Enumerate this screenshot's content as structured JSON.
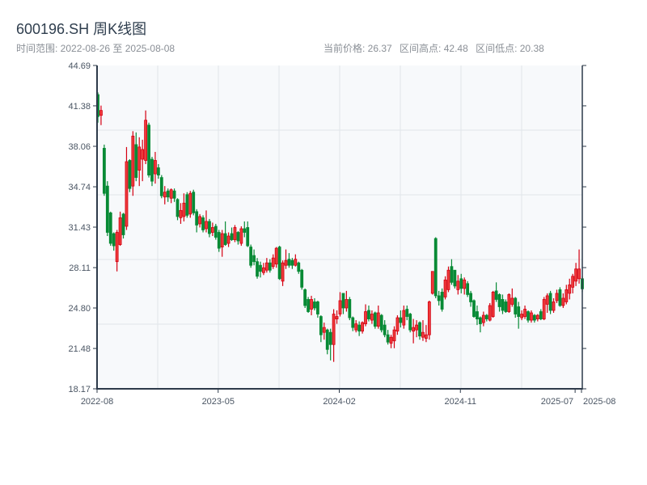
{
  "header": {
    "title": "600196.SH 周K线图",
    "range_label": "时间范围: 2022-08-26 至 2025-08-08",
    "current_price": "当前价格: 26.37",
    "high": "区间高点: 42.48",
    "low": "区间低点: 20.38"
  },
  "colors": {
    "up": "#d40012",
    "up_fill": "#ee3b3b",
    "down": "#078a35",
    "plot_bg": "#f7f9fb",
    "grid": "#e1e5ea",
    "axis": "#2d3a4a"
  },
  "chart_data": {
    "type": "candlestick",
    "title": "600196.SH 周K线图",
    "ylim": [
      18.17,
      44.69
    ],
    "yticks": [
      "18.17",
      "21.48",
      "24.80",
      "28.11",
      "31.43",
      "34.74",
      "38.06",
      "41.38",
      "44.69"
    ],
    "xticks": [
      {
        "label": "2022-08",
        "index": 0
      },
      {
        "label": "2023-05",
        "index": 38
      },
      {
        "label": "2024-02",
        "index": 76
      },
      {
        "label": "2024-11",
        "index": 114
      },
      {
        "label": "2025-07",
        "index": 150
      },
      {
        "label": "2025-08",
        "index": 152
      }
    ],
    "grid": true,
    "ohlc_order": [
      "open",
      "high",
      "low",
      "close"
    ],
    "candles": [
      [
        42.3,
        42.48,
        40.0,
        40.5
      ],
      [
        40.6,
        41.4,
        39.8,
        41.0
      ],
      [
        37.9,
        38.2,
        34.0,
        34.2
      ],
      [
        34.8,
        35.2,
        30.7,
        31.0
      ],
      [
        32.6,
        32.7,
        29.9,
        30.1
      ],
      [
        30.9,
        31.0,
        29.5,
        29.9
      ],
      [
        28.6,
        31.2,
        27.8,
        31.0
      ],
      [
        30.0,
        32.7,
        29.9,
        32.2
      ],
      [
        32.5,
        32.6,
        30.5,
        30.8
      ],
      [
        31.5,
        38.0,
        31.2,
        36.8
      ],
      [
        36.9,
        37.0,
        34.3,
        34.6
      ],
      [
        34.8,
        39.3,
        34.0,
        38.9
      ],
      [
        38.2,
        39.2,
        35.2,
        35.5
      ],
      [
        36.1,
        38.8,
        34.8,
        38.0
      ],
      [
        37.0,
        38.6,
        35.2,
        37.8
      ],
      [
        36.9,
        41.0,
        36.6,
        40.2
      ],
      [
        39.8,
        40.0,
        35.5,
        35.7
      ],
      [
        37.0,
        37.2,
        34.8,
        35.2
      ],
      [
        35.8,
        37.6,
        35.0,
        36.9
      ],
      [
        36.3,
        36.6,
        35.4,
        35.7
      ],
      [
        35.5,
        35.7,
        33.8,
        34.0
      ],
      [
        33.9,
        34.8,
        33.3,
        34.3
      ],
      [
        34.4,
        34.6,
        33.5,
        33.9
      ],
      [
        33.8,
        34.6,
        33.4,
        34.5
      ],
      [
        34.4,
        34.6,
        33.5,
        33.8
      ],
      [
        33.7,
        33.8,
        32.0,
        32.3
      ],
      [
        32.2,
        33.4,
        31.7,
        32.8
      ],
      [
        32.3,
        34.2,
        31.9,
        33.4
      ],
      [
        34.1,
        34.3,
        32.2,
        32.4
      ],
      [
        32.5,
        34.4,
        32.2,
        34.2
      ],
      [
        34.3,
        34.5,
        32.4,
        32.6
      ],
      [
        32.7,
        32.9,
        31.0,
        31.6
      ],
      [
        31.7,
        32.5,
        31.4,
        32.3
      ],
      [
        32.2,
        32.4,
        31.0,
        31.2
      ],
      [
        31.3,
        32.8,
        31.0,
        31.9
      ],
      [
        31.9,
        32.1,
        30.6,
        30.9
      ],
      [
        31.0,
        31.8,
        30.7,
        31.4
      ],
      [
        31.5,
        31.7,
        30.4,
        30.6
      ],
      [
        31.0,
        31.2,
        29.4,
        29.7
      ],
      [
        29.8,
        31.2,
        29.0,
        30.9
      ],
      [
        30.9,
        31.9,
        29.9,
        30.0
      ],
      [
        30.1,
        31.0,
        29.8,
        30.7
      ],
      [
        30.9,
        31.4,
        30.3,
        30.4
      ],
      [
        30.4,
        31.6,
        30.2,
        31.4
      ],
      [
        31.0,
        31.1,
        30.0,
        30.3
      ],
      [
        30.1,
        31.5,
        29.9,
        31.3
      ],
      [
        31.3,
        31.9,
        30.6,
        31.0
      ],
      [
        31.4,
        31.9,
        29.8,
        29.9
      ],
      [
        29.8,
        30.0,
        28.1,
        28.3
      ],
      [
        29.1,
        29.6,
        28.3,
        28.6
      ],
      [
        28.6,
        28.9,
        27.2,
        27.4
      ],
      [
        28.3,
        28.6,
        27.3,
        27.8
      ],
      [
        27.7,
        28.5,
        27.5,
        28.1
      ],
      [
        27.9,
        28.9,
        27.7,
        28.5
      ],
      [
        28.5,
        28.8,
        27.7,
        27.9
      ],
      [
        28.2,
        29.2,
        28.0,
        28.9
      ],
      [
        28.4,
        29.8,
        28.1,
        29.7
      ],
      [
        29.8,
        29.9,
        27.1,
        27.2
      ],
      [
        27.0,
        28.7,
        26.6,
        28.5
      ],
      [
        28.3,
        29.6,
        28.0,
        28.7
      ],
      [
        28.8,
        29.3,
        28.1,
        28.3
      ],
      [
        28.7,
        28.9,
        28.0,
        28.3
      ],
      [
        28.3,
        29.2,
        28.2,
        28.8
      ],
      [
        28.5,
        28.6,
        27.6,
        27.8
      ],
      [
        27.9,
        28.0,
        26.3,
        26.5
      ],
      [
        26.3,
        26.4,
        24.8,
        25.0
      ],
      [
        25.5,
        25.7,
        24.4,
        24.5
      ],
      [
        24.7,
        25.8,
        24.2,
        25.5
      ],
      [
        25.3,
        25.6,
        24.6,
        24.8
      ],
      [
        25.3,
        25.4,
        24.0,
        24.3
      ],
      [
        24.1,
        24.2,
        22.0,
        22.6
      ],
      [
        22.8,
        23.6,
        22.2,
        23.2
      ],
      [
        23.0,
        23.1,
        21.0,
        21.4
      ],
      [
        22.8,
        23.1,
        20.5,
        21.8
      ],
      [
        21.8,
        24.7,
        20.38,
        24.3
      ],
      [
        23.9,
        24.6,
        23.5,
        24.1
      ],
      [
        24.3,
        26.1,
        24.1,
        25.4
      ],
      [
        26.0,
        26.0,
        24.3,
        24.8
      ],
      [
        24.8,
        26.2,
        24.5,
        25.5
      ],
      [
        25.5,
        25.7,
        23.8,
        24.0
      ],
      [
        24.0,
        24.1,
        22.9,
        23.2
      ],
      [
        23.0,
        23.8,
        22.8,
        23.5
      ],
      [
        23.4,
        23.7,
        22.5,
        22.9
      ],
      [
        22.9,
        23.7,
        22.7,
        23.6
      ],
      [
        23.5,
        25.1,
        23.3,
        24.5
      ],
      [
        24.6,
        25.0,
        23.7,
        23.9
      ],
      [
        23.8,
        24.6,
        23.5,
        24.3
      ],
      [
        24.4,
        24.5,
        23.1,
        23.3
      ],
      [
        23.3,
        25.0,
        23.1,
        24.4
      ],
      [
        24.2,
        24.3,
        22.8,
        23.0
      ],
      [
        23.4,
        23.8,
        22.4,
        22.6
      ],
      [
        22.6,
        23.0,
        21.8,
        22.0
      ],
      [
        21.9,
        22.6,
        21.5,
        22.4
      ],
      [
        22.1,
        23.3,
        21.5,
        23.0
      ],
      [
        22.9,
        24.2,
        22.6,
        24.0
      ],
      [
        24.0,
        24.6,
        23.2,
        23.6
      ],
      [
        23.4,
        25.0,
        23.1,
        24.6
      ],
      [
        24.7,
        25.0,
        23.8,
        24.1
      ],
      [
        24.3,
        24.4,
        22.8,
        23.0
      ],
      [
        22.9,
        23.9,
        21.9,
        23.2
      ],
      [
        23.0,
        23.8,
        22.4,
        23.4
      ],
      [
        23.6,
        23.7,
        22.2,
        22.5
      ],
      [
        22.4,
        23.8,
        22.1,
        22.8
      ],
      [
        22.3,
        23.4,
        22.0,
        22.6
      ],
      [
        22.6,
        25.4,
        22.2,
        25.3
      ],
      [
        26.0,
        27.8,
        25.9,
        27.8
      ],
      [
        30.5,
        30.6,
        25.6,
        25.8
      ],
      [
        25.8,
        26.2,
        25.0,
        25.4
      ],
      [
        26.1,
        26.4,
        24.5,
        24.7
      ],
      [
        25.7,
        27.4,
        25.5,
        27.1
      ],
      [
        26.3,
        28.2,
        26.1,
        27.9
      ],
      [
        28.2,
        28.8,
        26.7,
        26.9
      ],
      [
        27.9,
        27.9,
        26.4,
        26.6
      ],
      [
        26.3,
        27.5,
        25.9,
        27.0
      ],
      [
        27.2,
        27.6,
        26.0,
        26.4
      ],
      [
        26.4,
        27.3,
        25.9,
        27.1
      ],
      [
        26.8,
        27.0,
        25.7,
        25.9
      ],
      [
        26.0,
        26.2,
        24.9,
        25.3
      ],
      [
        25.4,
        25.5,
        24.0,
        24.1
      ],
      [
        24.5,
        25.0,
        23.4,
        23.9
      ],
      [
        24.0,
        24.1,
        22.8,
        23.5
      ],
      [
        23.6,
        24.5,
        23.3,
        24.2
      ],
      [
        24.2,
        24.3,
        23.7,
        23.9
      ],
      [
        23.8,
        25.2,
        23.7,
        25.0
      ],
      [
        24.1,
        26.2,
        24.0,
        26.1
      ],
      [
        26.2,
        26.9,
        25.3,
        25.5
      ],
      [
        25.9,
        26.0,
        24.5,
        24.9
      ],
      [
        25.5,
        25.9,
        24.3,
        24.6
      ],
      [
        25.3,
        25.5,
        24.4,
        24.5
      ],
      [
        24.5,
        26.0,
        24.4,
        25.9
      ],
      [
        25.1,
        26.4,
        24.9,
        25.6
      ],
      [
        25.6,
        25.7,
        24.0,
        24.3
      ],
      [
        24.9,
        25.3,
        23.1,
        24.1
      ],
      [
        24.0,
        24.6,
        23.8,
        24.3
      ],
      [
        24.1,
        25.0,
        23.9,
        24.7
      ],
      [
        24.5,
        24.6,
        23.6,
        23.8
      ],
      [
        23.8,
        24.6,
        23.6,
        24.4
      ],
      [
        24.2,
        24.3,
        23.6,
        23.8
      ],
      [
        23.9,
        24.3,
        23.7,
        24.2
      ],
      [
        24.5,
        24.7,
        23.8,
        23.9
      ],
      [
        23.9,
        25.7,
        23.8,
        25.5
      ],
      [
        25.1,
        26.0,
        24.4,
        25.8
      ],
      [
        26.0,
        26.2,
        24.3,
        24.6
      ],
      [
        24.6,
        25.6,
        24.4,
        25.3
      ],
      [
        25.4,
        26.3,
        25.2,
        26.0
      ],
      [
        26.3,
        26.5,
        24.9,
        25.0
      ],
      [
        25.0,
        26.0,
        24.8,
        25.6
      ],
      [
        25.3,
        26.7,
        25.1,
        26.3
      ],
      [
        26.0,
        27.2,
        25.5,
        26.7
      ],
      [
        26.5,
        27.6,
        26.0,
        27.4
      ],
      [
        27.0,
        28.5,
        26.6,
        28.0
      ],
      [
        27.2,
        29.6,
        26.8,
        28.0
      ],
      [
        27.2,
        27.4,
        26.1,
        26.37
      ]
    ]
  }
}
